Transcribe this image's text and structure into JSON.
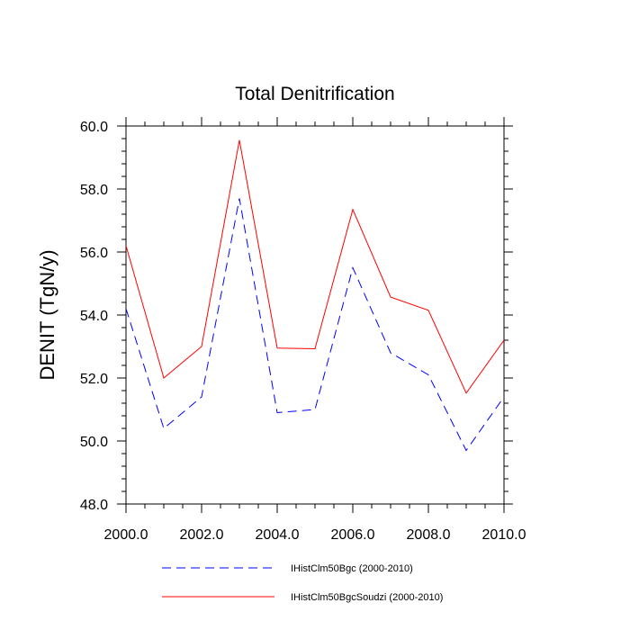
{
  "chart_data": {
    "type": "line",
    "title": "Total Denitrification",
    "xlabel": "",
    "ylabel": "DENIT  (TgN/y)",
    "xlim": [
      2000,
      2010
    ],
    "ylim": [
      48,
      60
    ],
    "x_ticks": [
      "2000.0",
      "2002.0",
      "2004.0",
      "2006.0",
      "2008.0",
      "2010.0"
    ],
    "y_ticks": [
      "48.0",
      "50.0",
      "52.0",
      "54.0",
      "56.0",
      "58.0",
      "60.0"
    ],
    "x": [
      2000,
      2001,
      2002,
      2003,
      2004,
      2005,
      2006,
      2007,
      2008,
      2009,
      2010
    ],
    "series": [
      {
        "name": "IHistClm50Bgc (2000-2010)",
        "color": "#0000ff",
        "dash": "dashed",
        "values": [
          54.2,
          50.4,
          51.4,
          57.7,
          50.9,
          51.0,
          55.5,
          52.8,
          52.1,
          49.7,
          51.4
        ]
      },
      {
        "name": "IHistClm50BgcSoudzi (2000-2010)",
        "color": "#ff0000",
        "dash": "solid",
        "values": [
          56.2,
          52.0,
          53.0,
          59.55,
          52.95,
          52.93,
          57.35,
          54.57,
          54.15,
          51.52,
          53.2
        ]
      }
    ],
    "grid": false,
    "legend": "bottom"
  }
}
